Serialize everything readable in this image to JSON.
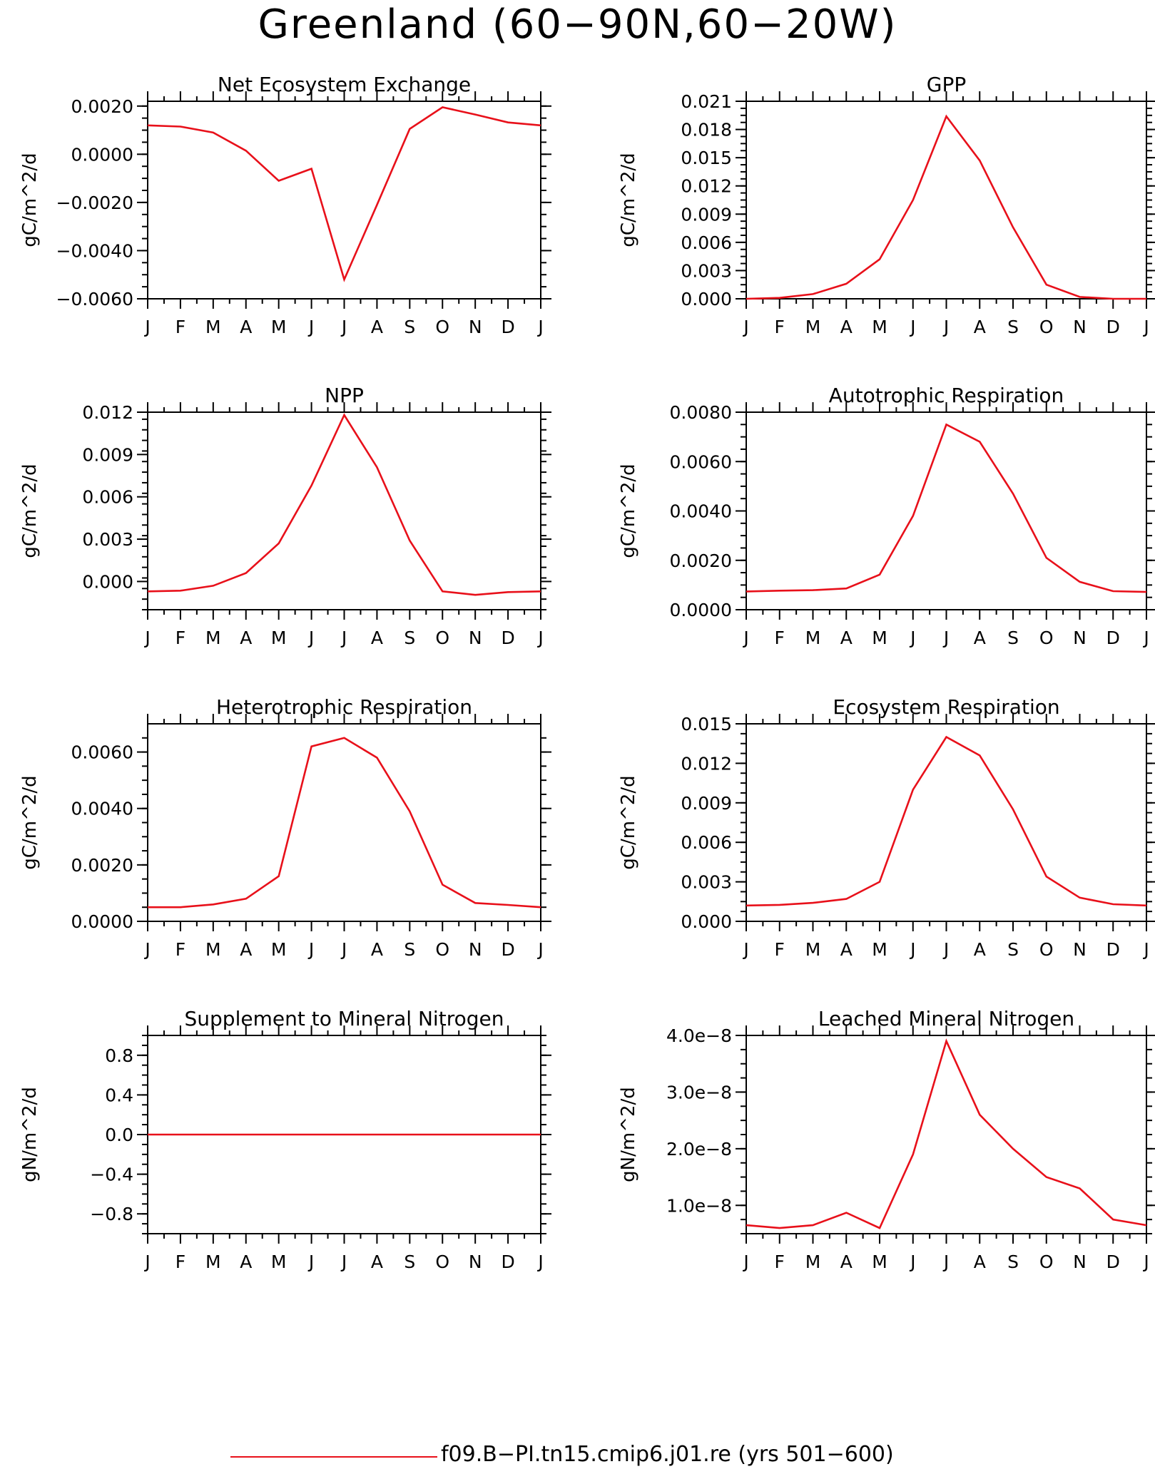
{
  "title": "Greenland (60−90N,60−20W)",
  "line_color": "#e8101a",
  "legend": {
    "label": "f09.B−PI.tn15.cmip6.j01.re (yrs 501−600)"
  },
  "chart_data": [
    {
      "type": "line",
      "title": "Net Ecosystem Exchange",
      "ylabel": "gC/m^2/d",
      "categories": [
        "J",
        "F",
        "M",
        "A",
        "M",
        "J",
        "J",
        "A",
        "S",
        "O",
        "N",
        "D",
        "J"
      ],
      "ylim": [
        -0.006,
        0.0022
      ],
      "yticks": [
        0.002,
        0.0,
        -0.002,
        -0.004,
        -0.006
      ],
      "ytick_labels": [
        "0.0020",
        "0.0000",
        "−0.0020",
        "−0.0040",
        "−0.0060"
      ],
      "series": [
        {
          "values": [
            0.0012,
            0.00115,
            0.0009,
            0.00015,
            -0.0011,
            -0.0006,
            -0.0052,
            -0.0021,
            0.00105,
            0.00195,
            0.00165,
            0.00132,
            0.0012
          ]
        }
      ]
    },
    {
      "type": "line",
      "title": "GPP",
      "ylabel": "gC/m^2/d",
      "categories": [
        "J",
        "F",
        "M",
        "A",
        "M",
        "J",
        "J",
        "A",
        "S",
        "O",
        "N",
        "D",
        "J"
      ],
      "ylim": [
        0,
        0.021
      ],
      "yticks": [
        0.021,
        0.018,
        0.015,
        0.012,
        0.009,
        0.006,
        0.003,
        0.0
      ],
      "ytick_labels": [
        "0.021",
        "0.018",
        "0.015",
        "0.012",
        "0.009",
        "0.006",
        "0.003",
        "0.000"
      ],
      "series": [
        {
          "values": [
            0.0,
            0.0001,
            0.0005,
            0.0016,
            0.0042,
            0.0105,
            0.0194,
            0.0147,
            0.0076,
            0.0015,
            0.0002,
            0.0,
            0.0
          ]
        }
      ]
    },
    {
      "type": "line",
      "title": "NPP",
      "ylabel": "gC/m^2/d",
      "categories": [
        "J",
        "F",
        "M",
        "A",
        "M",
        "J",
        "J",
        "A",
        "S",
        "O",
        "N",
        "D",
        "J"
      ],
      "ylim": [
        -0.002,
        0.012
      ],
      "yticks": [
        0.012,
        0.009,
        0.006,
        0.003,
        0.0
      ],
      "ytick_labels": [
        "0.012",
        "0.009",
        "0.006",
        "0.003",
        "0.000"
      ],
      "series": [
        {
          "values": [
            -0.0007,
            -0.00065,
            -0.0003,
            0.0006,
            0.0027,
            0.0068,
            0.0118,
            0.0081,
            0.0029,
            -0.0007,
            -0.00095,
            -0.00075,
            -0.0007
          ]
        }
      ]
    },
    {
      "type": "line",
      "title": "Autotrophic Respiration",
      "ylabel": "gC/m^2/d",
      "categories": [
        "J",
        "F",
        "M",
        "A",
        "M",
        "J",
        "J",
        "A",
        "S",
        "O",
        "N",
        "D",
        "J"
      ],
      "ylim": [
        0,
        0.008
      ],
      "yticks": [
        0.008,
        0.006,
        0.004,
        0.002,
        0.0
      ],
      "ytick_labels": [
        "0.0080",
        "0.0060",
        "0.0040",
        "0.0020",
        "0.0000"
      ],
      "series": [
        {
          "values": [
            0.00074,
            0.00077,
            0.00079,
            0.00086,
            0.00142,
            0.0038,
            0.0075,
            0.0068,
            0.0047,
            0.0021,
            0.00113,
            0.00075,
            0.00072
          ]
        }
      ]
    },
    {
      "type": "line",
      "title": "Heterotrophic Respiration",
      "ylabel": "gC/m^2/d",
      "categories": [
        "J",
        "F",
        "M",
        "A",
        "M",
        "J",
        "J",
        "A",
        "S",
        "O",
        "N",
        "D",
        "J"
      ],
      "ylim": [
        0,
        0.007
      ],
      "yticks": [
        0.006,
        0.004,
        0.002,
        0.0
      ],
      "ytick_labels": [
        "0.0060",
        "0.0040",
        "0.0020",
        "0.0000"
      ],
      "series": [
        {
          "values": [
            0.0005,
            0.0005,
            0.0006,
            0.0008,
            0.0016,
            0.0062,
            0.0065,
            0.0058,
            0.0039,
            0.0013,
            0.00065,
            0.00058,
            0.0005
          ]
        }
      ]
    },
    {
      "type": "line",
      "title": "Ecosystem Respiration",
      "ylabel": "gC/m^2/d",
      "categories": [
        "J",
        "F",
        "M",
        "A",
        "M",
        "J",
        "J",
        "A",
        "S",
        "O",
        "N",
        "D",
        "J"
      ],
      "ylim": [
        0,
        0.015
      ],
      "yticks": [
        0.015,
        0.012,
        0.009,
        0.006,
        0.003,
        0.0
      ],
      "ytick_labels": [
        "0.015",
        "0.012",
        "0.009",
        "0.006",
        "0.003",
        "0.000"
      ],
      "series": [
        {
          "values": [
            0.0012,
            0.00125,
            0.0014,
            0.0017,
            0.003,
            0.01,
            0.014,
            0.0126,
            0.0085,
            0.0034,
            0.0018,
            0.0013,
            0.0012
          ]
        }
      ]
    },
    {
      "type": "line",
      "title": "Supplement to Mineral Nitrogen",
      "ylabel": "gN/m^2/d",
      "categories": [
        "J",
        "F",
        "M",
        "A",
        "M",
        "J",
        "J",
        "A",
        "S",
        "O",
        "N",
        "D",
        "J"
      ],
      "ylim": [
        -1.0,
        1.0
      ],
      "yticks": [
        0.8,
        0.4,
        0.0,
        -0.4,
        -0.8
      ],
      "ytick_labels": [
        "0.8",
        "0.4",
        "0.0",
        "−0.4",
        "−0.8"
      ],
      "series": [
        {
          "values": [
            0,
            0,
            0,
            0,
            0,
            0,
            0,
            0,
            0,
            0,
            0,
            0,
            0
          ]
        }
      ]
    },
    {
      "type": "line",
      "title": "Leached Mineral Nitrogen",
      "ylabel": "gN/m^2/d",
      "categories": [
        "J",
        "F",
        "M",
        "A",
        "M",
        "J",
        "J",
        "A",
        "S",
        "O",
        "N",
        "D",
        "J"
      ],
      "ylim": [
        5e-09,
        4e-08
      ],
      "yticks": [
        4e-08,
        3e-08,
        2e-08,
        1e-08
      ],
      "ytick_labels": [
        "4.0e−8",
        "3.0e−8",
        "2.0e−8",
        "1.0e−8"
      ],
      "series": [
        {
          "values": [
            6.5e-09,
            6e-09,
            6.5e-09,
            8.7e-09,
            6e-09,
            1.9e-08,
            3.9e-08,
            2.6e-08,
            2e-08,
            1.5e-08,
            1.3e-08,
            7.5e-09,
            6.5e-09
          ]
        }
      ]
    }
  ]
}
